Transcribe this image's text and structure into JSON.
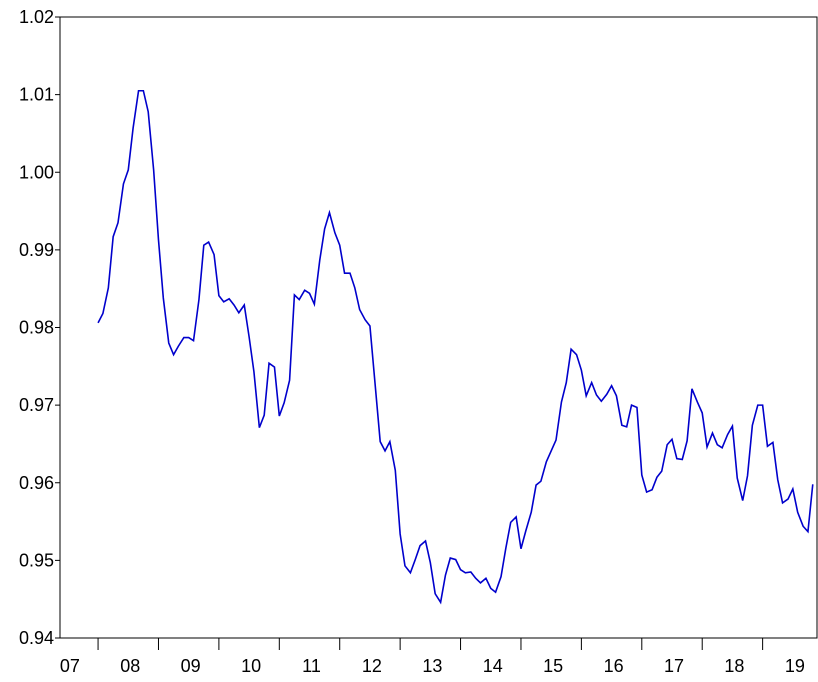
{
  "chart_data": {
    "type": "line",
    "x": [
      2008.0,
      2008.08,
      2008.17,
      2008.25,
      2008.33,
      2008.42,
      2008.5,
      2008.58,
      2008.67,
      2008.75,
      2008.83,
      2008.92,
      2009.0,
      2009.08,
      2009.17,
      2009.25,
      2009.33,
      2009.42,
      2009.5,
      2009.58,
      2009.67,
      2009.75,
      2009.83,
      2009.92,
      2010.0,
      2010.08,
      2010.17,
      2010.25,
      2010.33,
      2010.42,
      2010.5,
      2010.58,
      2010.67,
      2010.75,
      2010.83,
      2010.92,
      2011.0,
      2011.08,
      2011.17,
      2011.25,
      2011.33,
      2011.42,
      2011.5,
      2011.58,
      2011.67,
      2011.75,
      2011.83,
      2011.92,
      2012.0,
      2012.08,
      2012.17,
      2012.25,
      2012.33,
      2012.42,
      2012.5,
      2012.58,
      2012.67,
      2012.75,
      2012.83,
      2012.92,
      2013.0,
      2013.08,
      2013.17,
      2013.25,
      2013.33,
      2013.42,
      2013.5,
      2013.58,
      2013.67,
      2013.75,
      2013.83,
      2013.92,
      2014.0,
      2014.08,
      2014.17,
      2014.25,
      2014.33,
      2014.42,
      2014.5,
      2014.58,
      2014.67,
      2014.75,
      2014.83,
      2014.92,
      2015.0,
      2015.08,
      2015.17,
      2015.25,
      2015.33,
      2015.42,
      2015.5,
      2015.58,
      2015.67,
      2015.75,
      2015.83,
      2015.92,
      2016.0,
      2016.08,
      2016.17,
      2016.25,
      2016.33,
      2016.42,
      2016.5,
      2016.58,
      2016.67,
      2016.75,
      2016.83,
      2016.92,
      2017.0,
      2017.08,
      2017.17,
      2017.25,
      2017.33,
      2017.42,
      2017.5,
      2017.58,
      2017.67,
      2017.75,
      2017.83,
      2017.92,
      2018.0,
      2018.08,
      2018.17,
      2018.25,
      2018.33,
      2018.42,
      2018.5,
      2018.58,
      2018.67,
      2018.75,
      2018.83,
      2018.92,
      2019.0,
      2019.08,
      2019.17,
      2019.25,
      2019.33,
      2019.42,
      2019.5,
      2019.58,
      2019.67,
      2019.75,
      2019.83
    ],
    "series": [
      {
        "color": "#0000cc",
        "values": [
          0.9806,
          0.9818,
          0.9851,
          0.9917,
          0.9935,
          0.9985,
          1.0003,
          1.0057,
          1.0105,
          1.0105,
          1.0078,
          1.0003,
          0.9913,
          0.9838,
          0.978,
          0.9765,
          0.9776,
          0.9787,
          0.9787,
          0.9783,
          0.9836,
          0.9906,
          0.991,
          0.9894,
          0.9841,
          0.9833,
          0.9837,
          0.9829,
          0.9819,
          0.9829,
          0.9788,
          0.9743,
          0.9671,
          0.9687,
          0.9754,
          0.9749,
          0.9686,
          0.9703,
          0.9732,
          0.9842,
          0.9836,
          0.9848,
          0.9844,
          0.983,
          0.9887,
          0.9927,
          0.9948,
          0.9922,
          0.9906,
          0.987,
          0.987,
          0.9851,
          0.9823,
          0.981,
          0.9802,
          0.9732,
          0.9653,
          0.9641,
          0.9653,
          0.9616,
          0.9534,
          0.9493,
          0.9484,
          0.9501,
          0.9519,
          0.9525,
          0.9497,
          0.9457,
          0.9446,
          0.9481,
          0.9503,
          0.9501,
          0.9488,
          0.9484,
          0.9485,
          0.9477,
          0.9471,
          0.9477,
          0.9464,
          0.9459,
          0.9479,
          0.9516,
          0.9549,
          0.9556,
          0.9515,
          0.9538,
          0.9562,
          0.9597,
          0.9602,
          0.9627,
          0.9641,
          0.9655,
          0.9704,
          0.9729,
          0.9772,
          0.9765,
          0.9745,
          0.9712,
          0.9729,
          0.9713,
          0.9705,
          0.9714,
          0.9725,
          0.9712,
          0.9674,
          0.9672,
          0.97,
          0.9697,
          0.961,
          0.9588,
          0.9591,
          0.9607,
          0.9615,
          0.9649,
          0.9656,
          0.9631,
          0.963,
          0.9654,
          0.9721,
          0.9704,
          0.969,
          0.9646,
          0.9664,
          0.9649,
          0.9645,
          0.9662,
          0.9673,
          0.9606,
          0.9577,
          0.9609,
          0.9674,
          0.97,
          0.97,
          0.9647,
          0.9652,
          0.9604,
          0.9574,
          0.9579,
          0.9592,
          0.9562,
          0.9544,
          0.9537,
          0.9598
        ]
      }
    ],
    "xlim": [
      2007.37,
      2019.9
    ],
    "xticks": [
      {
        "value": 2007.5,
        "label": "07"
      },
      {
        "value": 2008.5,
        "label": "08"
      },
      {
        "value": 2009.5,
        "label": "09"
      },
      {
        "value": 2010.5,
        "label": "10"
      },
      {
        "value": 2011.5,
        "label": "11"
      },
      {
        "value": 2012.5,
        "label": "12"
      },
      {
        "value": 2013.5,
        "label": "13"
      },
      {
        "value": 2014.5,
        "label": "14"
      },
      {
        "value": 2015.5,
        "label": "15"
      },
      {
        "value": 2016.5,
        "label": "16"
      },
      {
        "value": 2017.5,
        "label": "17"
      },
      {
        "value": 2018.5,
        "label": "18"
      },
      {
        "value": 2019.5,
        "label": "19"
      }
    ],
    "ylim": [
      0.94,
      1.02
    ],
    "yticks": [
      0.94,
      0.95,
      0.96,
      0.97,
      0.98,
      0.99,
      {
        "value": 1,
        "label": "1.00"
      },
      1.01,
      1.02
    ],
    "grid": false
  }
}
